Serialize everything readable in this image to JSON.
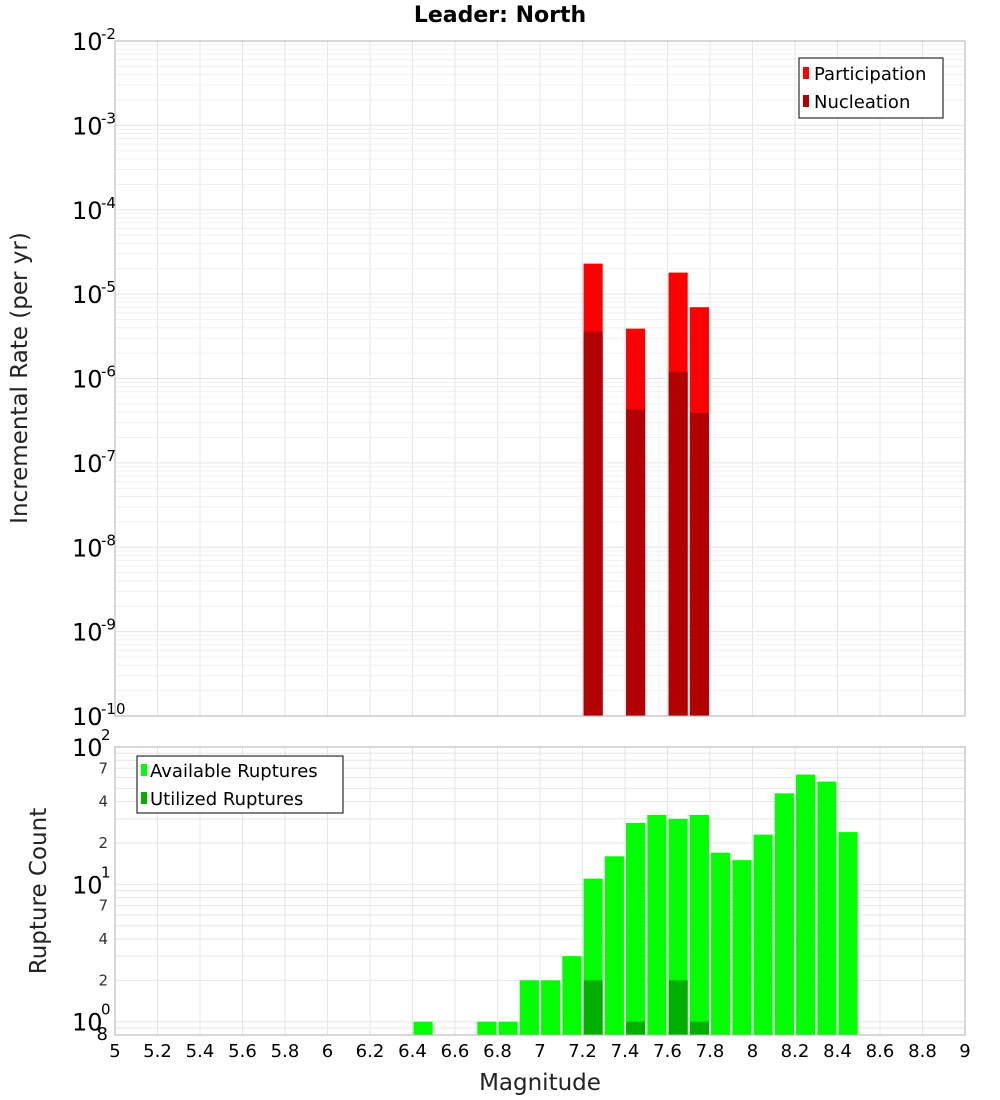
{
  "chart_data": [
    {
      "type": "bar",
      "title": "Leader: North",
      "xlabel": "",
      "ylabel": "Incremental Rate (per yr)",
      "yscale": "log",
      "xlim": [
        5,
        9
      ],
      "ylim": [
        1e-10,
        0.01
      ],
      "y_major_ticks": [
        {
          "base": "10",
          "exp": "-10",
          "value": 1e-10
        },
        {
          "base": "10",
          "exp": "-9",
          "value": 1e-09
        },
        {
          "base": "10",
          "exp": "-8",
          "value": 1e-08
        },
        {
          "base": "10",
          "exp": "-7",
          "value": 1e-07
        },
        {
          "base": "10",
          "exp": "-6",
          "value": 1e-06
        },
        {
          "base": "10",
          "exp": "-5",
          "value": 1e-05
        },
        {
          "base": "10",
          "exp": "-4",
          "value": 0.0001
        },
        {
          "base": "10",
          "exp": "-3",
          "value": 0.001
        },
        {
          "base": "10",
          "exp": "-2",
          "value": 0.01
        }
      ],
      "legend": {
        "position": "top-right",
        "entries": [
          "Participation",
          "Nucleation"
        ]
      },
      "bar_width_mag": 0.09,
      "series": [
        {
          "name": "Participation",
          "color": "#ff0000",
          "points": [
            {
              "x": 7.25,
              "y": 2.3e-05
            },
            {
              "x": 7.45,
              "y": 3.9e-06
            },
            {
              "x": 7.65,
              "y": 1.8e-05
            },
            {
              "x": 7.75,
              "y": 7e-06
            }
          ]
        },
        {
          "name": "Nucleation",
          "color": "#b30000",
          "points": [
            {
              "x": 7.25,
              "y": 3.6e-06
            },
            {
              "x": 7.45,
              "y": 4.3e-07
            },
            {
              "x": 7.65,
              "y": 1.2e-06
            },
            {
              "x": 7.75,
              "y": 3.9e-07
            }
          ]
        }
      ]
    },
    {
      "type": "bar",
      "title": "",
      "xlabel": "Magnitude",
      "ylabel": "Rupture Count",
      "yscale": "log",
      "xlim": [
        5,
        9
      ],
      "ylim": [
        0.8,
        100
      ],
      "x_ticks": [
        "5",
        "5.2",
        "5.4",
        "5.6",
        "5.8",
        "6",
        "6.2",
        "6.4",
        "6.6",
        "6.8",
        "7",
        "7.2",
        "7.4",
        "7.6",
        "7.8",
        "8",
        "8.2",
        "8.4",
        "8.6",
        "8.8",
        "9"
      ],
      "y_major_ticks": [
        {
          "base": "10",
          "exp": "0",
          "value": 1
        },
        {
          "base": "10",
          "exp": "1",
          "value": 10
        },
        {
          "base": "10",
          "exp": "2",
          "value": 100
        }
      ],
      "y_minor_ticks": [
        {
          "label": "8",
          "value": 0.8
        },
        {
          "label": "2",
          "value": 2
        },
        {
          "label": "4",
          "value": 4
        },
        {
          "label": "7",
          "value": 7
        },
        {
          "label": "2",
          "value": 20
        },
        {
          "label": "4",
          "value": 40
        },
        {
          "label": "7",
          "value": 70
        }
      ],
      "legend": {
        "position": "top-left",
        "entries": [
          "Available Ruptures",
          "Utilized Ruptures"
        ]
      },
      "bar_width_mag": 0.09,
      "series": [
        {
          "name": "Available Ruptures",
          "color": "#00ff00",
          "points": [
            {
              "x": 6.45,
              "y": 1
            },
            {
              "x": 6.75,
              "y": 1
            },
            {
              "x": 6.85,
              "y": 1
            },
            {
              "x": 6.95,
              "y": 2
            },
            {
              "x": 7.05,
              "y": 2
            },
            {
              "x": 7.15,
              "y": 3
            },
            {
              "x": 7.25,
              "y": 11
            },
            {
              "x": 7.35,
              "y": 16
            },
            {
              "x": 7.45,
              "y": 28
            },
            {
              "x": 7.55,
              "y": 32
            },
            {
              "x": 7.65,
              "y": 30
            },
            {
              "x": 7.75,
              "y": 32
            },
            {
              "x": 7.85,
              "y": 17
            },
            {
              "x": 7.95,
              "y": 15
            },
            {
              "x": 8.05,
              "y": 23
            },
            {
              "x": 8.15,
              "y": 46
            },
            {
              "x": 8.25,
              "y": 63
            },
            {
              "x": 8.35,
              "y": 56
            },
            {
              "x": 8.45,
              "y": 24
            }
          ]
        },
        {
          "name": "Utilized Ruptures",
          "color": "#00b000",
          "points": [
            {
              "x": 7.25,
              "y": 2
            },
            {
              "x": 7.45,
              "y": 1
            },
            {
              "x": 7.65,
              "y": 2
            },
            {
              "x": 7.75,
              "y": 1
            }
          ]
        }
      ]
    }
  ]
}
